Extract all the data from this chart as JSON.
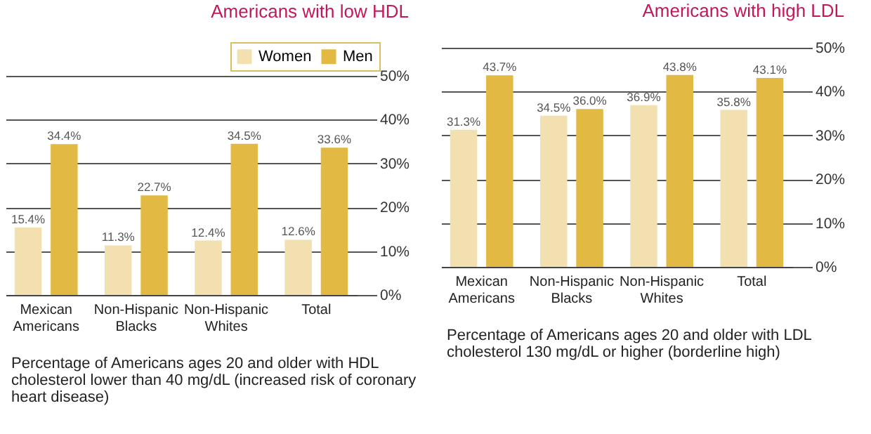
{
  "chart_data": [
    {
      "type": "bar",
      "title": "Americans with low HDL",
      "categories": [
        "Mexican Americans",
        "Non-Hispanic Blacks",
        "Non-Hispanic Whites",
        "Total"
      ],
      "series": [
        {
          "name": "Women",
          "color": "#f2e0b0",
          "values": [
            15.4,
            11.3,
            12.4,
            12.6
          ],
          "value_labels": [
            "15.4%",
            "11.3%",
            "12.4%",
            "12.6%"
          ]
        },
        {
          "name": "Men",
          "color": "#e2b943",
          "values": [
            34.4,
            22.7,
            34.5,
            33.6
          ],
          "value_labels": [
            "34.4%",
            "22.7%",
            "34.5%",
            "33.6%"
          ]
        }
      ],
      "ylim": [
        0,
        50
      ],
      "yticks": [
        {
          "value": 0,
          "label": "0%"
        },
        {
          "value": 10,
          "label": "10%"
        },
        {
          "value": 20,
          "label": "20%"
        },
        {
          "value": 30,
          "label": "30%"
        },
        {
          "value": 40,
          "label": "40%"
        },
        {
          "value": 50,
          "label": "50%"
        }
      ],
      "grid": "y",
      "legend": "top right",
      "annotations": [
        "Percentage of Americans ages 20 and older with HDL cholesterol lower than 40 mg/dL (increased risk of coronary heart disease)"
      ]
    },
    {
      "type": "bar",
      "title": "Americans with high LDL",
      "categories": [
        "Mexican Americans",
        "Non-Hispanic Blacks",
        "Non-Hispanic Whites",
        "Total"
      ],
      "series": [
        {
          "color": "#f2e0b0",
          "values": [
            31.3,
            34.5,
            36.9,
            35.8
          ],
          "value_labels": [
            "31.3%",
            "34.5%",
            "36.9%",
            "35.8%"
          ]
        },
        {
          "color": "#e2b943",
          "values": [
            43.7,
            36.0,
            43.8,
            43.1
          ],
          "value_labels": [
            "43.7%",
            "36.0%",
            "43.8%",
            "43.1%"
          ]
        }
      ],
      "ylim": [
        0,
        50
      ],
      "yticks": [
        {
          "value": 0,
          "label": "0%"
        },
        {
          "value": 10,
          "label": "10%"
        },
        {
          "value": 20,
          "label": "20%"
        },
        {
          "value": 30,
          "label": "30%"
        },
        {
          "value": 40,
          "label": "40%"
        },
        {
          "value": 50,
          "label": "50%"
        }
      ],
      "grid": "y",
      "annotations": [
        "Percentage of Americans ages 20 and older with LDL cholesterol 130 mg/dL or higher (borderline high)"
      ]
    }
  ]
}
